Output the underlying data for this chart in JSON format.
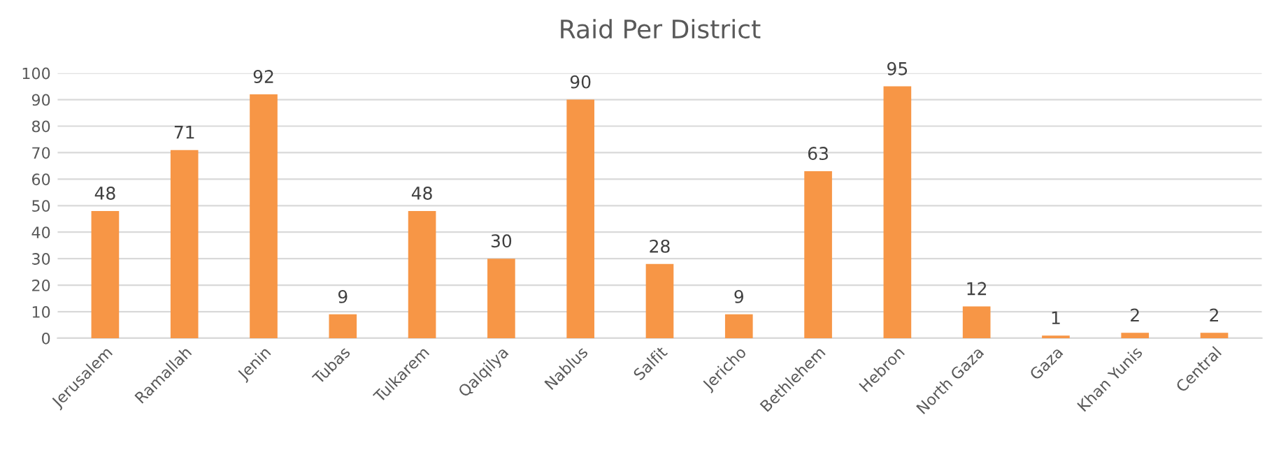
{
  "chart_data": {
    "type": "bar",
    "title": "Raid Per District",
    "categories": [
      "Jerusalem",
      "Ramallah",
      "Jenin",
      "Tubas",
      "Tulkarem",
      "Qalqilya",
      "Nablus",
      "Salfit",
      "Jericho",
      "Bethlehem",
      "Hebron",
      "North Gaza",
      "Gaza",
      "Khan Yunis",
      "Central"
    ],
    "values": [
      48,
      71,
      92,
      9,
      48,
      30,
      90,
      28,
      9,
      63,
      95,
      12,
      1,
      2,
      2
    ],
    "color": "#f79646",
    "ylim": [
      0,
      100
    ],
    "yticks": [
      0,
      10,
      20,
      30,
      40,
      50,
      60,
      70,
      80,
      90,
      100
    ],
    "grid": "y",
    "data_labels": true
  }
}
